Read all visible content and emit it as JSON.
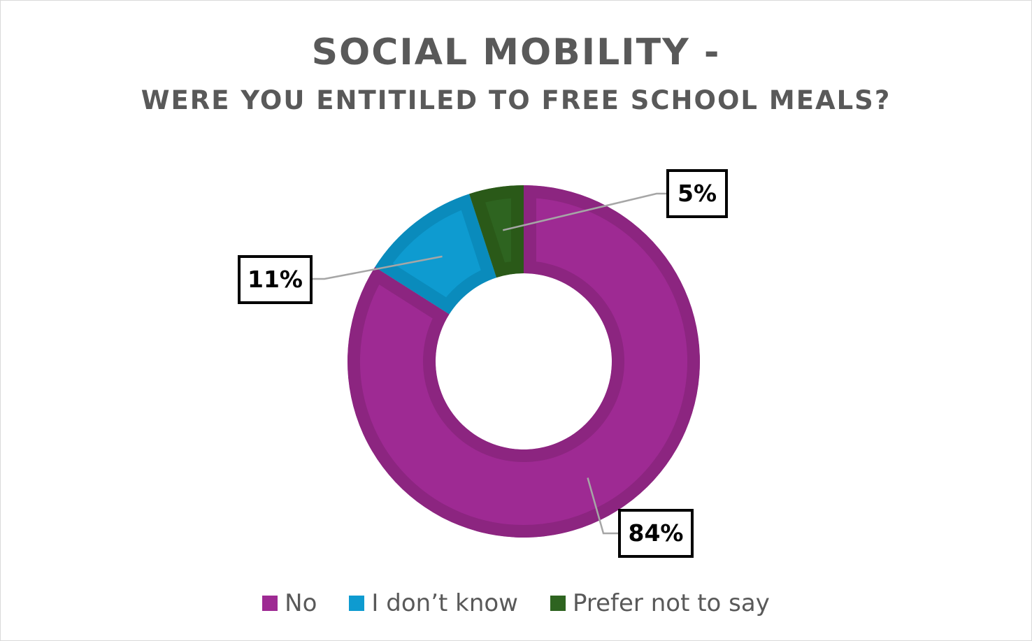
{
  "chart_data": {
    "type": "pie",
    "subtype": "donut",
    "title": "SOCIAL MOBILITY -",
    "subtitle": "WERE YOU ENTITILED TO FREE SCHOOL MEALS?",
    "categories": [
      "No",
      "I don’t know",
      "Prefer not to say"
    ],
    "values": [
      84,
      11,
      5
    ],
    "data_labels": [
      "84%",
      "11%",
      "5%"
    ],
    "colors": [
      "#9E2A93",
      "#0E9BD0",
      "#2E6420"
    ],
    "border_colors": [
      "#8C2580",
      "#0A8BBC",
      "#2A5918"
    ],
    "legend_position": "bottom"
  }
}
